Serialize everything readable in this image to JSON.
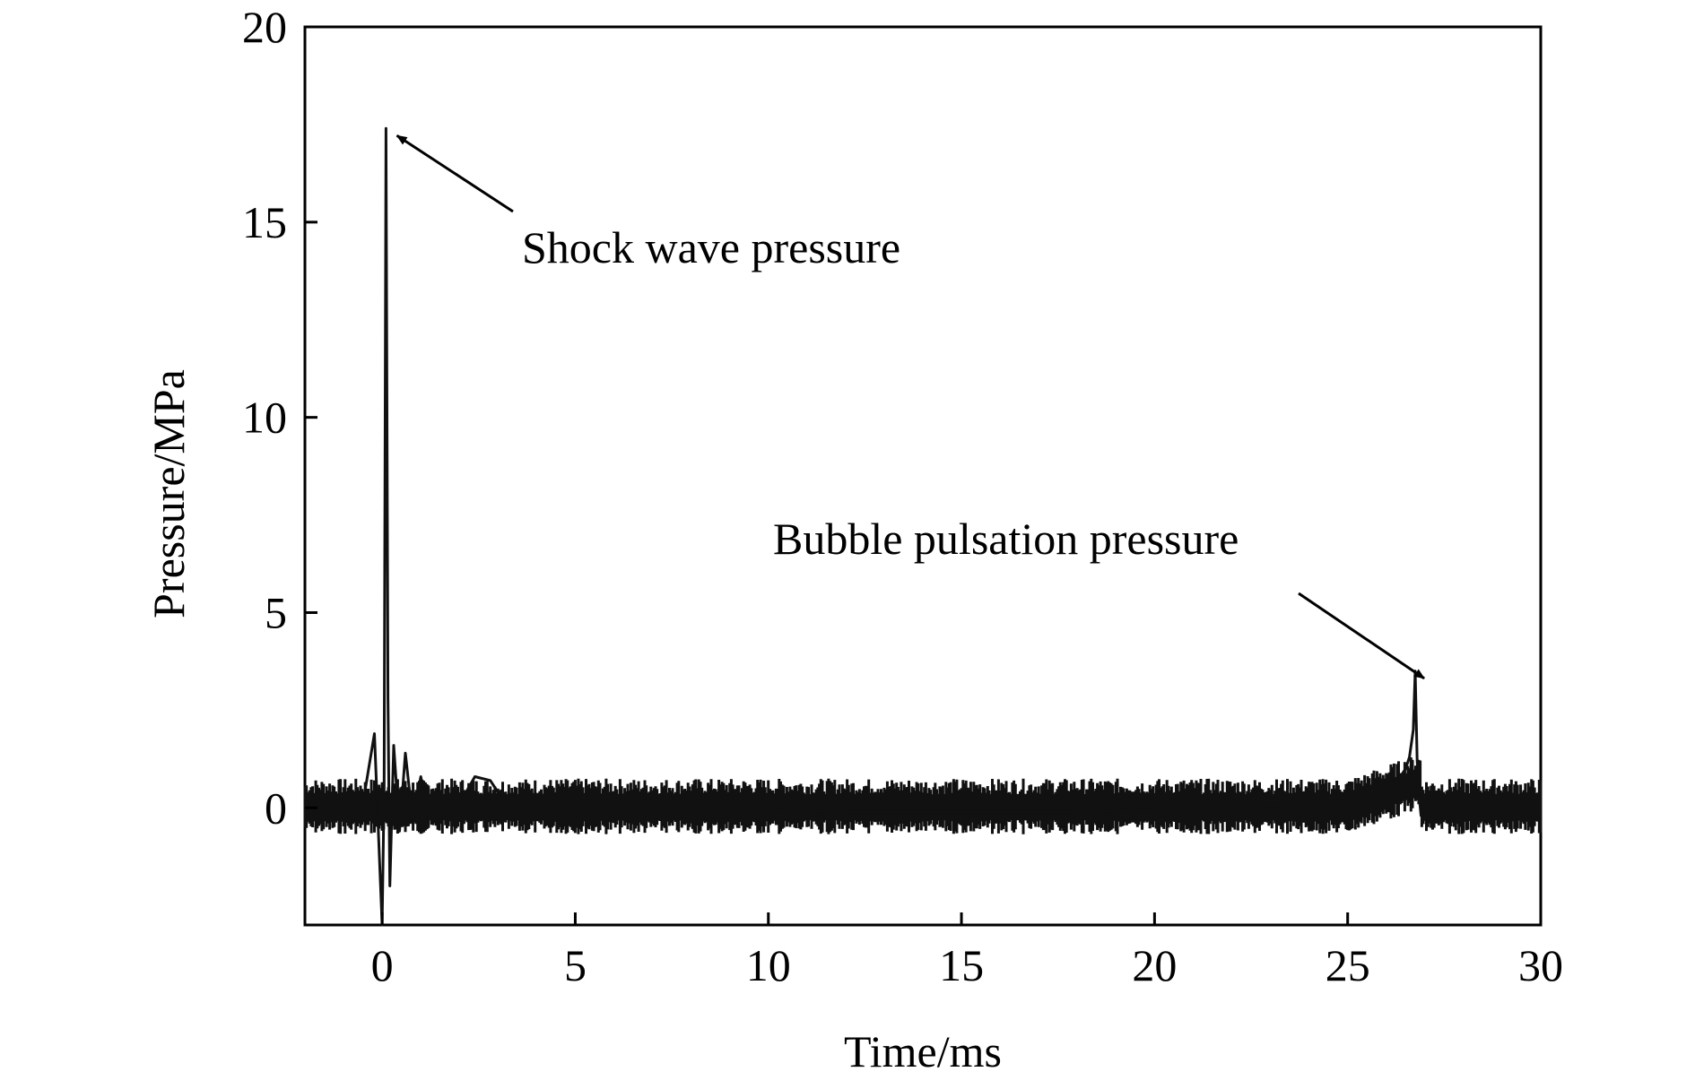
{
  "chart_data": {
    "type": "line",
    "title": "",
    "xlabel": "Time/ms",
    "ylabel": "Pressure/MPa",
    "xlim": [
      -2,
      30
    ],
    "ylim": [
      -3,
      20
    ],
    "xticks": [
      0,
      5,
      10,
      15,
      20,
      25,
      30
    ],
    "yticks": [
      0,
      5,
      10,
      15,
      20
    ],
    "grid": false,
    "legend": false,
    "color": "#111111",
    "series": [
      {
        "x": [
          -2,
          -1,
          -0.5,
          -0.2,
          0,
          0.05,
          0.1,
          0.15,
          0.2,
          0.3,
          0.45,
          0.6,
          0.8,
          1.0,
          1.2,
          1.5,
          2.0,
          2.4,
          2.8,
          3.2,
          4,
          5,
          6,
          8,
          10,
          12,
          14,
          16,
          18,
          20,
          22,
          24,
          25,
          25.5,
          26,
          26.3,
          26.5,
          26.6,
          26.7,
          26.75,
          26.8,
          26.85,
          26.9,
          27.0,
          27.2,
          28,
          29,
          30
        ],
        "y": [
          0,
          0,
          0.1,
          1.9,
          -3.0,
          0.5,
          17.4,
          2.8,
          -2.0,
          1.6,
          -0.6,
          1.4,
          -0.4,
          0.8,
          -0.3,
          0.3,
          0.1,
          0.8,
          0.7,
          0.1,
          0.0,
          0.05,
          0.0,
          0.0,
          -0.05,
          -0.1,
          -0.1,
          -0.1,
          -0.1,
          -0.05,
          0.0,
          0.1,
          0.2,
          0.3,
          0.5,
          0.7,
          1.0,
          1.3,
          2.0,
          3.5,
          1.2,
          0.3,
          -0.2,
          0.0,
          0.0,
          0.0,
          0.0,
          0.0
        ]
      }
    ],
    "annotations": [
      {
        "text": "Shock wave pressure",
        "x": 0.15,
        "y": 17.4
      },
      {
        "text": "Bubble pulsation pressure",
        "x": 26.75,
        "y": 3.5
      }
    ]
  }
}
